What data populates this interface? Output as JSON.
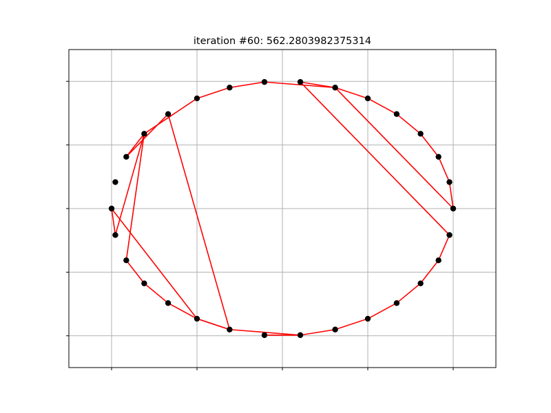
{
  "chart_data": {
    "type": "line",
    "title": "iteration #60: 562.2803982375314",
    "xlabel": "",
    "ylabel": "",
    "xlim": [
      -1.25,
      1.25
    ],
    "ylim": [
      -1.25,
      1.25
    ],
    "grid": true,
    "x_ticks": [
      -1,
      -0.5,
      0,
      0.5,
      1
    ],
    "y_ticks": [
      -1,
      -0.5,
      0,
      0.5,
      1
    ],
    "tick_labels_visible": false,
    "points": {
      "x": [
        1.0,
        0.978,
        0.914,
        0.809,
        0.669,
        0.5,
        0.309,
        0.105,
        -0.105,
        -0.309,
        -0.5,
        -0.669,
        -0.809,
        -0.914,
        -0.978,
        -1.0,
        -0.978,
        -0.914,
        -0.809,
        -0.669,
        -0.5,
        -0.309,
        -0.105,
        0.105,
        0.309,
        0.5,
        0.669,
        0.809,
        0.914,
        0.978
      ],
      "y": [
        0.0,
        0.208,
        0.407,
        0.588,
        0.743,
        0.866,
        0.951,
        0.995,
        0.995,
        0.951,
        0.866,
        0.743,
        0.588,
        0.407,
        0.208,
        0.0,
        -0.208,
        -0.407,
        -0.588,
        -0.743,
        -0.866,
        -0.951,
        -0.995,
        -0.995,
        -0.951,
        -0.866,
        -0.743,
        -0.588,
        -0.407,
        -0.208
      ]
    },
    "tour": [
      0,
      1,
      2,
      3,
      4,
      5,
      6,
      7,
      29,
      28,
      27,
      26,
      25,
      24,
      23,
      22,
      23,
      21,
      20,
      19,
      18,
      17,
      12,
      16,
      15,
      20,
      21,
      11,
      13,
      12,
      10,
      9,
      8,
      6,
      0
    ],
    "colors": {
      "points": "#000000",
      "path": "#ff0000",
      "grid": "#b0b0b0",
      "axes": "#000000"
    }
  }
}
